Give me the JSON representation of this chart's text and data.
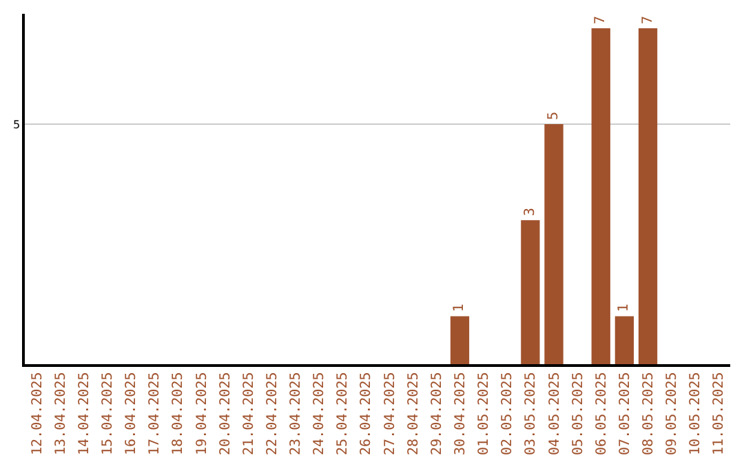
{
  "chart_data": {
    "type": "bar",
    "ylim": [
      0,
      7.3
    ],
    "yticks": [
      5
    ],
    "grid": "y",
    "data_labels": true,
    "categories": [
      "12.04.2025",
      "13.04.2025",
      "14.04.2025",
      "15.04.2025",
      "16.04.2025",
      "17.04.2025",
      "18.04.2025",
      "19.04.2025",
      "20.04.2025",
      "21.04.2025",
      "22.04.2025",
      "23.04.2025",
      "24.04.2025",
      "25.04.2025",
      "26.04.2025",
      "27.04.2025",
      "28.04.2025",
      "29.04.2025",
      "30.04.2025",
      "01.05.2025",
      "02.05.2025",
      "03.05.2025",
      "04.05.2025",
      "05.05.2025",
      "06.05.2025",
      "07.05.2025",
      "08.05.2025",
      "09.05.2025",
      "10.05.2025",
      "11.05.2025"
    ],
    "values": [
      null,
      null,
      null,
      null,
      null,
      null,
      null,
      null,
      null,
      null,
      null,
      null,
      null,
      null,
      null,
      null,
      null,
      null,
      1,
      null,
      null,
      3,
      5,
      null,
      7,
      1,
      7,
      null,
      null,
      null
    ],
    "color": "#a0522d",
    "legend": false
  }
}
